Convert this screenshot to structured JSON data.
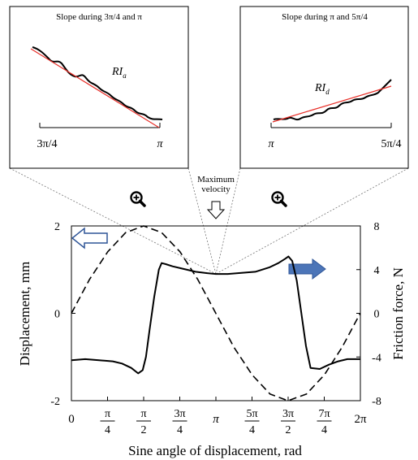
{
  "chart_data": {
    "type": "line",
    "xlabel": "Sine angle of displacement, rad",
    "ylabel_left": "Displacement, mm",
    "ylabel_right": "Friction force, N",
    "xlim_rad": [
      0,
      6.2832
    ],
    "ylim_left": [
      -2,
      2
    ],
    "ylim_right": [
      -8,
      8
    ],
    "x_ticks": [
      {
        "value": 0,
        "text": "0"
      },
      {
        "value": 0.7854,
        "num": "π",
        "den": "4"
      },
      {
        "value": 1.5708,
        "num": "π",
        "den": "2"
      },
      {
        "value": 2.3562,
        "num": "3π",
        "den": "4"
      },
      {
        "value": 3.1416,
        "text": "π"
      },
      {
        "value": 3.927,
        "num": "5π",
        "den": "4"
      },
      {
        "value": 4.7124,
        "num": "3π",
        "den": "2"
      },
      {
        "value": 5.4978,
        "num": "7π",
        "den": "4"
      },
      {
        "value": 6.2832,
        "text": "2π"
      }
    ],
    "y_left_ticks": [
      "2",
      "0",
      "-2"
    ],
    "y_right_ticks": [
      "8",
      "4",
      "0",
      "-4",
      "-8"
    ],
    "series": [
      {
        "axis": "left",
        "style": "dashed",
        "x": [
          0,
          0.39,
          0.79,
          1.18,
          1.57,
          1.96,
          2.36,
          2.75,
          3.14,
          3.53,
          3.93,
          4.32,
          4.71,
          5.11,
          5.5,
          5.89,
          6.28
        ],
        "y": [
          0,
          0.77,
          1.41,
          1.85,
          2.0,
          1.85,
          1.41,
          0.77,
          0,
          -0.77,
          -1.41,
          -1.85,
          -2.0,
          -1.85,
          -1.41,
          -0.77,
          0
        ]
      },
      {
        "axis": "right",
        "style": "solid",
        "x": [
          0,
          0.3,
          0.6,
          0.9,
          1.1,
          1.3,
          1.45,
          1.55,
          1.62,
          1.7,
          1.8,
          1.9,
          1.96,
          2.05,
          2.2,
          2.4,
          2.7,
          2.9,
          3.14,
          3.4,
          3.7,
          4.0,
          4.3,
          4.5,
          4.65,
          4.72,
          4.8,
          4.9,
          5.0,
          5.1,
          5.2,
          5.4,
          5.6,
          5.8,
          6.0,
          6.28
        ],
        "y": [
          -4.3,
          -4.2,
          -4.3,
          -4.4,
          -4.6,
          -5.0,
          -5.5,
          -5.2,
          -4.0,
          -1.5,
          1.5,
          4.0,
          4.6,
          4.5,
          4.3,
          4.1,
          3.8,
          3.7,
          3.6,
          3.6,
          3.7,
          3.8,
          4.2,
          4.6,
          5.0,
          5.2,
          4.8,
          3.0,
          0.0,
          -3.0,
          -5.0,
          -5.1,
          -4.7,
          -4.4,
          -4.2,
          -4.2
        ]
      }
    ],
    "annotations": {
      "max_velocity": "Maximum velocity",
      "inset_left": {
        "title": "Slope during 3π/4 and π",
        "ri_base": "RI",
        "ri_sub": "a",
        "x_left": "3π/4",
        "x_right": "π",
        "range": [
          2.3562,
          3.1416
        ]
      },
      "inset_right": {
        "title": "Slope during π and 5π/4",
        "ri_base": "RI",
        "ri_sub": "d",
        "x_left": "π",
        "x_right": "5π/4",
        "range": [
          3.1416,
          3.927
        ]
      }
    },
    "colors": {
      "line": "#000000",
      "fit": "#e8302a",
      "arrow_fill": "#4c75b8",
      "arrow_stroke": "#2f5597"
    },
    "icons": [
      "zoom-in-icon",
      "zoom-in-icon",
      "hollow-arrow-left",
      "filled-arrow-right",
      "down-arrow-icon"
    ]
  }
}
